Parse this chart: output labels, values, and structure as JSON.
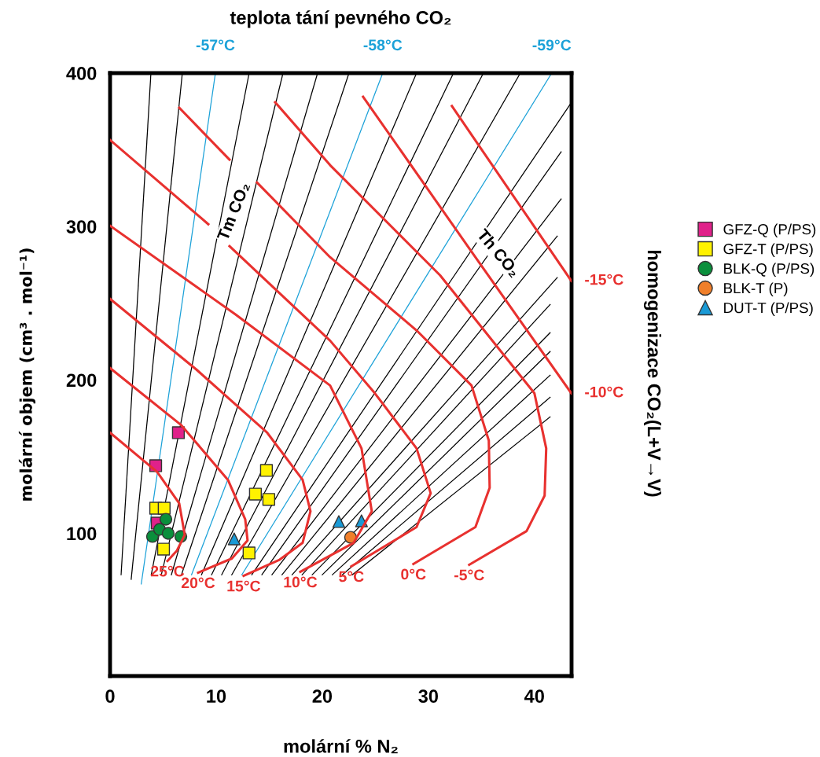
{
  "chart_data": {
    "type": "line",
    "title": "teplota tání pevného CO₂",
    "xlabel": "molární % N₂",
    "ylabel": "molární objem (cm³ . mol⁻¹)",
    "y2label": "homogenizace CO₂(L+V→V)",
    "xlim": [
      0,
      43.5
    ],
    "ylim": [
      7,
      400
    ],
    "xticks": [
      0,
      10,
      20,
      30,
      40
    ],
    "yticks": [
      100,
      200,
      300,
      400
    ],
    "legend": "right",
    "series": [
      {
        "color": "#000000",
        "x": [
          3.85,
          1.04
        ],
        "values": [
          400,
          73
        ]
      },
      {
        "color": "#000000",
        "x": [
          6.81,
          1.99
        ],
        "values": [
          400,
          70
        ]
      },
      {
        "name": "-57°C",
        "color": "#1ba1d8",
        "x": [
          9.93,
          2.94
        ],
        "values": [
          400,
          67
        ]
      },
      {
        "color": "#000000",
        "x": [
          13.11,
          3.88
        ],
        "values": [
          400,
          73
        ]
      },
      {
        "color": "#000000",
        "x": [
          16.3,
          4.83
        ],
        "values": [
          400,
          73
        ]
      },
      {
        "color": "#000000",
        "x": [
          19.56,
          5.78
        ],
        "values": [
          400,
          73
        ]
      },
      {
        "color": "#000000",
        "x": [
          22.52,
          6.73
        ],
        "values": [
          400,
          73
        ]
      },
      {
        "name": "-58°C",
        "color": "#1ba1d8",
        "x": [
          25.7,
          7.68
        ],
        "values": [
          400,
          73
        ]
      },
      {
        "color": "#000000",
        "x": [
          28.89,
          8.62
        ],
        "values": [
          400,
          73
        ]
      },
      {
        "color": "#000000",
        "x": [
          32.37,
          9.57
        ],
        "values": [
          400,
          73
        ]
      },
      {
        "color": "#000000",
        "x": [
          35.19,
          10.52
        ],
        "values": [
          400,
          73
        ]
      },
      {
        "color": "#000000",
        "x": [
          38.67,
          11.47
        ],
        "values": [
          400,
          73
        ]
      },
      {
        "name": "-59°C",
        "color": "#1ba1d8",
        "x": [
          41.63,
          12.42
        ],
        "values": [
          400,
          73
        ]
      },
      {
        "color": "#000000",
        "x": [
          43.5,
          13.36
        ],
        "values": [
          381,
          73
        ]
      },
      {
        "color": "#000000",
        "x": [
          42.52,
          14.31
        ],
        "values": [
          348.7,
          73
        ]
      },
      {
        "color": "#000000",
        "x": [
          42.52,
          15.26
        ],
        "values": [
          318,
          73
        ]
      },
      {
        "color": "#000000",
        "x": [
          42.15,
          16.21
        ],
        "values": [
          293.8,
          73
        ]
      },
      {
        "color": "#000000",
        "x": [
          42.15,
          17.16
        ],
        "values": [
          266.7,
          73
        ]
      },
      {
        "color": "#000000",
        "x": [
          41.48,
          18.1
        ],
        "values": [
          249.2,
          73
        ]
      },
      {
        "color": "#000000",
        "x": [
          41.48,
          19.05
        ],
        "values": [
          230.8,
          73
        ]
      },
      {
        "color": "#000000",
        "x": [
          41.48,
          20.0
        ],
        "values": [
          218.5,
          73
        ]
      },
      {
        "color": "#000000",
        "x": [
          41.48,
          20.95
        ],
        "values": [
          203.1,
          73
        ]
      },
      {
        "color": "#000000",
        "x": [
          41.48,
          21.9
        ],
        "values": [
          188.7,
          73
        ]
      },
      {
        "color": "#000000",
        "x": [
          41.48,
          22.84
        ],
        "values": [
          175.9,
          73
        ]
      },
      {
        "name": "25°C",
        "color": "#e8312f",
        "x": [
          0,
          4.44,
          6.52,
          7.04,
          6.3,
          5.41
        ],
        "values": [
          165.6,
          140,
          119.5,
          99,
          88.7,
          82
        ]
      },
      {
        "name": "20°C",
        "color": "#e8312f",
        "x": [
          0,
          6.67,
          11.11,
          12.74,
          12.96,
          11.48,
          8.3
        ],
        "values": [
          207.7,
          170.8,
          134.9,
          109.2,
          95.4,
          83.6,
          74.4
        ]
      },
      {
        "name": "15°C",
        "color": "#e8312f",
        "x": [
          0,
          8.15,
          14.81,
          18.15,
          18.89,
          18.15,
          15.93,
          12.59
        ],
        "values": [
          252.8,
          206.7,
          165.6,
          134.9,
          114.4,
          93.8,
          82.6,
          72.3
        ]
      },
      {
        "name": "10°C",
        "color": "#e8312f",
        "x": [
          0,
          11.85,
          20.74,
          23.7,
          24.67,
          22.96,
          17.93
        ],
        "values": [
          300.5,
          242.6,
          196.4,
          155.4,
          114.4,
          93.8,
          74.9
        ]
      },
      {
        "name": "5°C",
        "color": "#e8312f",
        "x": [
          0,
          9.26,
          10.3,
          11.26,
          20.74,
          24.96,
          28.89,
          30.22,
          28.89,
          22.74
        ],
        "values": [
          356.4,
          301.5,
          null,
          287.2,
          225.6,
          191.3,
          155.4,
          126.2,
          104.1,
          78.5
        ]
      },
      {
        "name": "0°C",
        "color": "#e8312f",
        "x": [
          6.52,
          11.26,
          12.5,
          13.85,
          20.74,
          28.89,
          34.07,
          35.7,
          35.78,
          34.44,
          28.59
        ],
        "values": [
          377.4,
          343.6,
          null,
          328.7,
          280,
          232.3,
          196.4,
          160.5,
          129.7,
          104.1,
          80
        ]
      },
      {
        "name": "-5°C",
        "color": "#e8312f",
        "x": [
          15.56,
          20.74,
          31.11,
          40,
          41.11,
          40.96,
          39.26,
          33.85
        ],
        "values": [
          381,
          340,
          268.2,
          191.3,
          155.4,
          124.6,
          101.5,
          79.5
        ]
      },
      {
        "name": "-10°C",
        "color": "#e8312f",
        "x": [
          23.85,
          34.07,
          43.48
        ],
        "values": [
          384.6,
          283.6,
          191.3
        ]
      },
      {
        "name": "-15°C",
        "color": "#e8312f",
        "x": [
          32.22,
          43.48
        ],
        "values": [
          378.5,
          264.6
        ]
      },
      {
        "name": "GFZ-Q (P/PS)",
        "type": "scatter",
        "marker": "square",
        "color": "#e0218a",
        "x": [
          6.44,
          4.3,
          4.44
        ],
        "values": [
          165.6,
          144.1,
          106.7
        ]
      },
      {
        "name": "GFZ-T (P/PS)",
        "type": "scatter",
        "marker": "square",
        "color": "#fff200",
        "x": [
          4.3,
          5.1,
          5.04,
          14.74,
          13.7,
          14.96,
          13.1
        ],
        "values": [
          116.4,
          116.4,
          89.7,
          141,
          125.6,
          122.1,
          87.2
        ]
      },
      {
        "name": "BLK-Q (P/PS)",
        "type": "scatter",
        "marker": "circle",
        "color": "#0a8f3c",
        "x": [
          5.26,
          4.0,
          4.67,
          5.48,
          6.67
        ],
        "values": [
          109.2,
          98,
          102.6,
          100,
          98
        ]
      },
      {
        "name": "BLK-T (P)",
        "type": "scatter",
        "marker": "circle",
        "color": "#f07f2a",
        "x": [
          22.67
        ],
        "values": [
          97.4
        ]
      },
      {
        "name": "DUT-T (P/PS)",
        "type": "scatter",
        "marker": "triangle",
        "color": "#1a9ad6",
        "x": [
          11.7,
          21.56,
          23.7
        ],
        "values": [
          96.4,
          107.7,
          108.2
        ]
      }
    ],
    "annotations": [
      "Tm CO₂",
      "Th CO₂"
    ]
  }
}
